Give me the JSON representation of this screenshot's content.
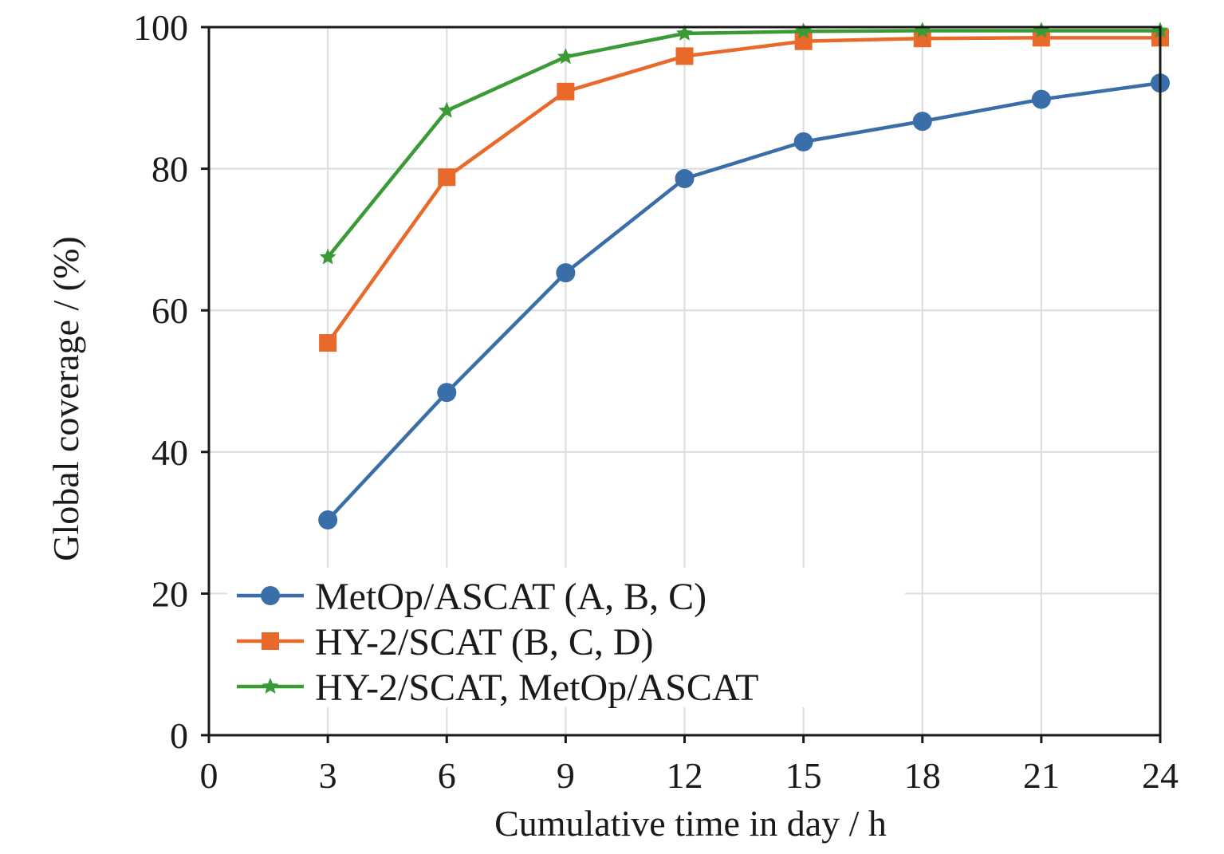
{
  "chart_data": {
    "type": "line",
    "title": "",
    "xlabel": "Cumulative time in day / h",
    "ylabel": "Global coverage / (%)",
    "xlim": [
      0,
      24
    ],
    "ylim": [
      0,
      100
    ],
    "xticks": [
      0,
      3,
      6,
      9,
      12,
      15,
      18,
      21,
      24
    ],
    "yticks": [
      0,
      20,
      40,
      60,
      80,
      100
    ],
    "grid": true,
    "legend_position": "lower-left",
    "x": [
      3,
      6,
      9,
      12,
      15,
      18,
      21,
      24
    ],
    "series": [
      {
        "name": "MetOp/ASCAT (A, B, C)",
        "color": "#3a6ea8",
        "marker": "circle",
        "values": [
          30.4,
          48.4,
          65.3,
          78.6,
          83.8,
          86.7,
          89.8,
          92.1
        ]
      },
      {
        "name": "HY-2/SCAT (B, C, D)",
        "color": "#e8692a",
        "marker": "square",
        "values": [
          55.4,
          78.8,
          90.9,
          95.9,
          98.0,
          98.4,
          98.5,
          98.5
        ]
      },
      {
        "name": "HY-2/SCAT, MetOp/ASCAT",
        "color": "#3a9a35",
        "marker": "star",
        "values": [
          67.5,
          88.2,
          95.8,
          99.1,
          99.4,
          99.5,
          99.5,
          99.5
        ]
      }
    ]
  }
}
